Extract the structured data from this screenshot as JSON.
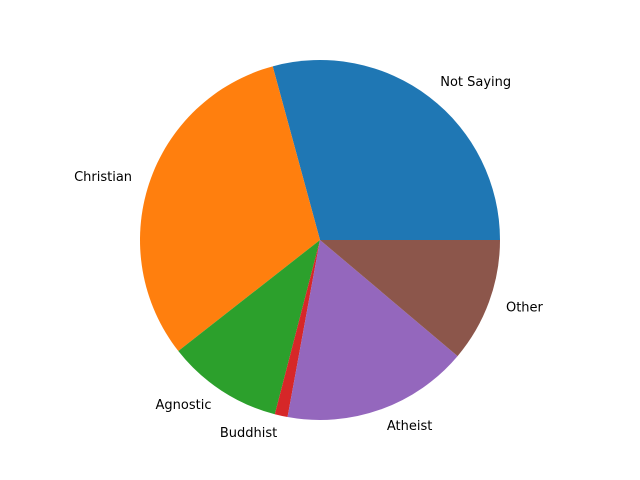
{
  "chart_data": {
    "type": "pie",
    "title": "",
    "labels": [
      "Not Saying",
      "Christian",
      "Agnostic",
      "Buddhist",
      "Atheist",
      "Other"
    ],
    "values": [
      30.4,
      32.6,
      10.8,
      1.2,
      17.4,
      11.6
    ],
    "colors": [
      "#1f77b4",
      "#ff7f0e",
      "#2ca02c",
      "#d62728",
      "#9467bd",
      "#8c564b"
    ],
    "start_angle_deg": 0,
    "direction": "counterclockwise",
    "legend": "none"
  }
}
